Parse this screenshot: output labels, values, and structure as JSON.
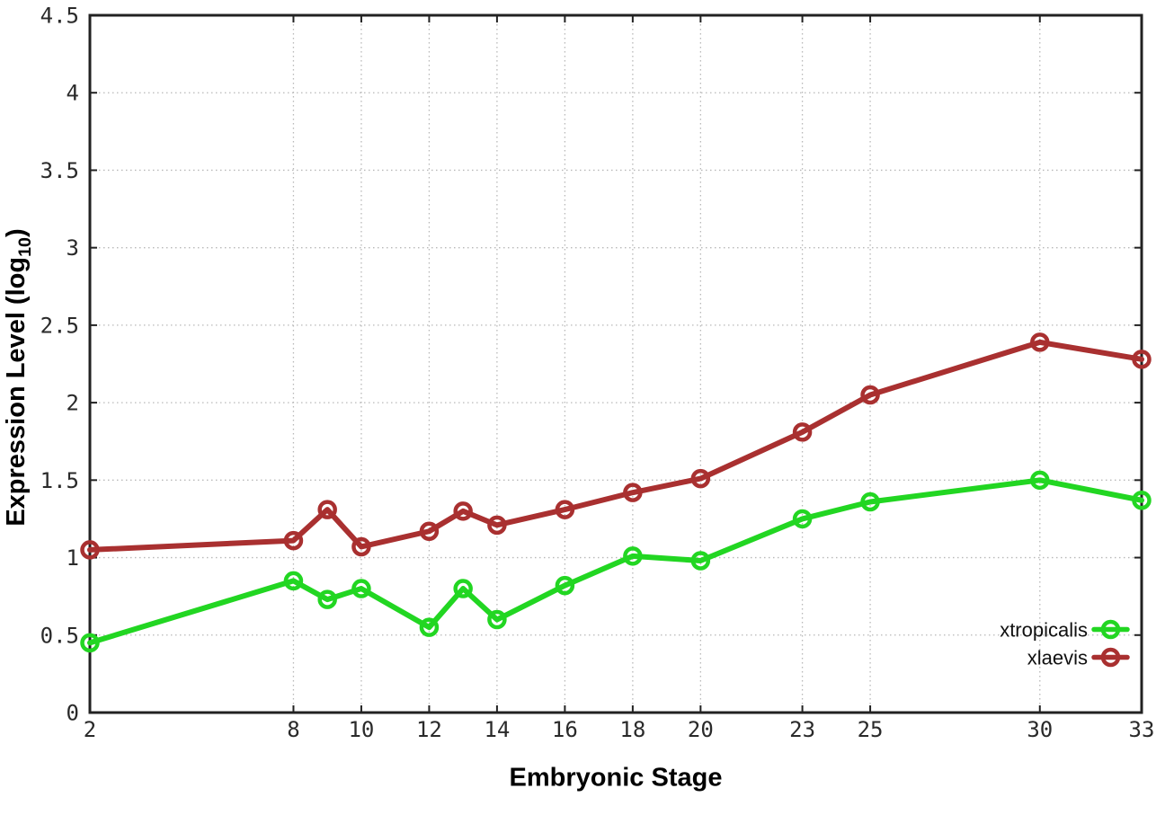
{
  "chart_data": {
    "type": "line",
    "title": "",
    "xlabel": "Embryonic Stage",
    "ylabel": "Expression Level (log10)",
    "ylabel_parts": {
      "prefix": "Expression Level (log",
      "sub": "10",
      "suffix": ")"
    },
    "x": [
      2,
      8,
      9,
      10,
      12,
      13,
      14,
      16,
      18,
      20,
      23,
      25,
      30,
      33
    ],
    "series": [
      {
        "name": "xtropicalis",
        "color": "#22d622",
        "marker": "open-circle",
        "values": [
          0.45,
          0.85,
          0.73,
          0.8,
          0.55,
          0.8,
          0.6,
          0.82,
          1.01,
          0.98,
          1.25,
          1.36,
          1.5,
          1.37
        ]
      },
      {
        "name": "xlaevis",
        "color": "#a93030",
        "marker": "open-circle",
        "values": [
          1.05,
          1.11,
          1.31,
          1.07,
          1.17,
          1.3,
          1.21,
          1.31,
          1.42,
          1.51,
          1.81,
          2.05,
          2.39,
          2.28
        ]
      }
    ],
    "x_ticks": [
      "2",
      "8",
      "10",
      "12",
      "14",
      "16",
      "18",
      "20",
      "23",
      "25",
      "30",
      "33"
    ],
    "x_tick_values": [
      2,
      8,
      10,
      12,
      14,
      16,
      18,
      20,
      23,
      25,
      30,
      33
    ],
    "y_ticks": [
      "0",
      "0.5",
      "1",
      "1.5",
      "2",
      "2.5",
      "3",
      "3.5",
      "4",
      "4.5"
    ],
    "y_tick_values": [
      0,
      0.5,
      1,
      1.5,
      2,
      2.5,
      3,
      3.5,
      4,
      4.5
    ],
    "xlim": [
      2,
      33
    ],
    "ylim": [
      0,
      4.5
    ],
    "grid": true,
    "legend_position": "bottom-right",
    "style": {
      "background": "#ffffff",
      "axis_color": "#222222",
      "grid_color": "#b8b8b8",
      "tick_text_color": "#2a2a2a",
      "legend_text_color": "#111111"
    }
  }
}
